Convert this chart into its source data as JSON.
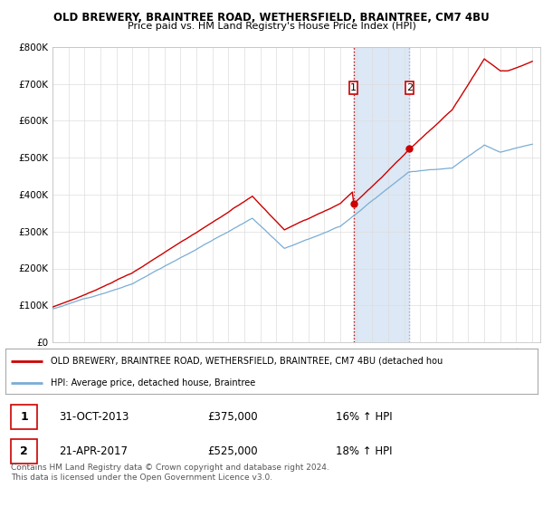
{
  "title1": "OLD BREWERY, BRAINTREE ROAD, WETHERSFIELD, BRAINTREE, CM7 4BU",
  "title2": "Price paid vs. HM Land Registry's House Price Index (HPI)",
  "legend_line1": "OLD BREWERY, BRAINTREE ROAD, WETHERSFIELD, BRAINTREE, CM7 4BU (detached hou",
  "legend_line2": "HPI: Average price, detached house, Braintree",
  "footnote": "Contains HM Land Registry data © Crown copyright and database right 2024.\nThis data is licensed under the Open Government Licence v3.0.",
  "sale1_date": "31-OCT-2013",
  "sale1_price": "£375,000",
  "sale1_hpi": "16% ↑ HPI",
  "sale2_date": "21-APR-2017",
  "sale2_price": "£525,000",
  "sale2_hpi": "18% ↑ HPI",
  "sale1_x": 2013.83,
  "sale1_y": 375000,
  "sale2_x": 2017.31,
  "sale2_y": 525000,
  "highlight_color": "#dce8f5",
  "line_color_red": "#cc0000",
  "line_color_blue": "#7aadd4",
  "dot_color_red": "#cc0000",
  "vline1_color": "#cc0000",
  "vline2_color": "#aaaacc",
  "background_color": "#ffffff",
  "grid_color": "#dddddd",
  "ylim_min": 0,
  "ylim_max": 800000,
  "xlim_min": 1995,
  "xlim_max": 2025.5,
  "yticks": [
    0,
    100000,
    200000,
    300000,
    400000,
    500000,
    600000,
    700000,
    800000
  ],
  "ytick_labels": [
    "£0",
    "£100K",
    "£200K",
    "£300K",
    "£400K",
    "£500K",
    "£600K",
    "£700K",
    "£800K"
  ],
  "xticks": [
    1995,
    1996,
    1997,
    1998,
    1999,
    2000,
    2001,
    2002,
    2003,
    2004,
    2005,
    2006,
    2007,
    2008,
    2009,
    2010,
    2011,
    2012,
    2013,
    2014,
    2015,
    2016,
    2017,
    2018,
    2019,
    2020,
    2021,
    2022,
    2023,
    2024,
    2025
  ],
  "marker1_y": 700000,
  "marker2_y": 700000
}
